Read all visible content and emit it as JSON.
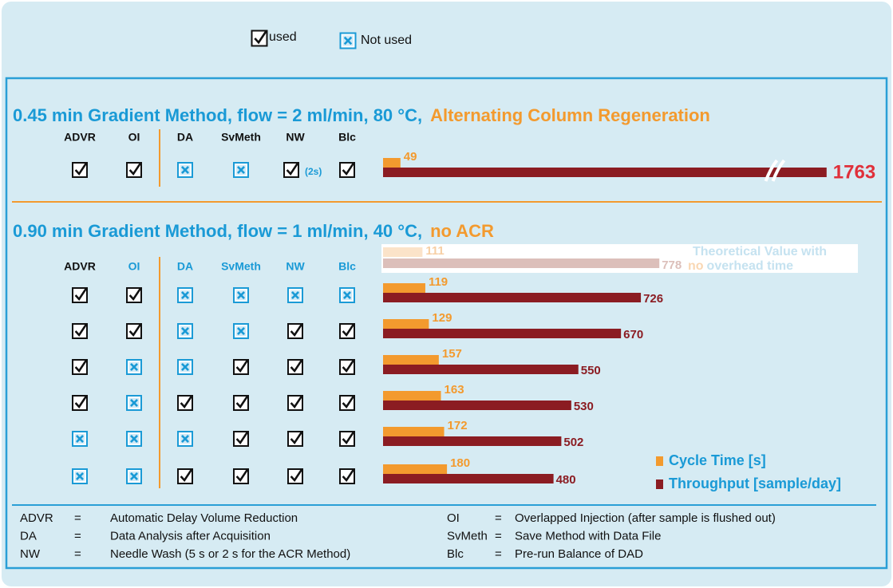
{
  "legend_top": {
    "used": "used",
    "not_used": "Not used"
  },
  "sections": [
    {
      "title": "0.45 min Gradient Method, flow = 2 ml/min, 80 °C,",
      "title_highlight": "Alternating Column Regeneration",
      "columns": [
        "ADVR",
        "OI",
        "DA",
        "SvMeth",
        "NW",
        "Blc"
      ],
      "nw_note": "(2s)",
      "rows": [
        {
          "checks": [
            true,
            true,
            false,
            false,
            true,
            true
          ],
          "cycle_time": 49,
          "throughput": 1763
        }
      ]
    },
    {
      "title": "0.90 min Gradient Method, flow = 1 ml/min, 40 °C,",
      "title_highlight": "no ACR",
      "columns": [
        "ADVR",
        "OI",
        "DA",
        "SvMeth",
        "NW",
        "Blc"
      ],
      "theoretical": {
        "cycle_time": 111,
        "throughput": 778,
        "label_1": "Theoretical Value with",
        "label_2": "no",
        "label_3": "overhead time"
      },
      "rows": [
        {
          "checks": [
            true,
            true,
            false,
            false,
            false,
            false
          ],
          "cycle_time": 119,
          "throughput": 726
        },
        {
          "checks": [
            true,
            true,
            false,
            false,
            true,
            true
          ],
          "cycle_time": 129,
          "throughput": 670
        },
        {
          "checks": [
            true,
            false,
            false,
            true,
            true,
            true
          ],
          "cycle_time": 157,
          "throughput": 550
        },
        {
          "checks": [
            true,
            false,
            true,
            true,
            true,
            true
          ],
          "cycle_time": 163,
          "throughput": 530
        },
        {
          "checks": [
            false,
            false,
            false,
            true,
            true,
            true
          ],
          "cycle_time": 172,
          "throughput": 502
        },
        {
          "checks": [
            false,
            false,
            true,
            true,
            true,
            true
          ],
          "cycle_time": 180,
          "throughput": 480
        }
      ]
    }
  ],
  "legend": {
    "cycle_time": {
      "label": "Cycle Time [s]",
      "color": "#f39a2e"
    },
    "throughput": {
      "label": "Throughput [sample/day]",
      "color": "#8b1c22"
    }
  },
  "definitions": [
    {
      "abbr": "ADVR",
      "sep": "=",
      "text": "Automatic Delay Volume Reduction"
    },
    {
      "abbr": "DA",
      "sep": "=",
      "text": "Data Analysis after Acquisition"
    },
    {
      "abbr": "NW",
      "sep": "=",
      "text": "Needle Wash (5 s  or  2 s for the ACR Method)"
    },
    {
      "abbr": "OI",
      "sep": "=",
      "text": "Overlapped Injection (after sample is flushed out)"
    },
    {
      "abbr": "SvMeth",
      "sep": "=",
      "text": "Save Method with Data File"
    },
    {
      "abbr": "Blc",
      "sep": "=",
      "text": "Pre-run Balance of DAD"
    }
  ]
}
